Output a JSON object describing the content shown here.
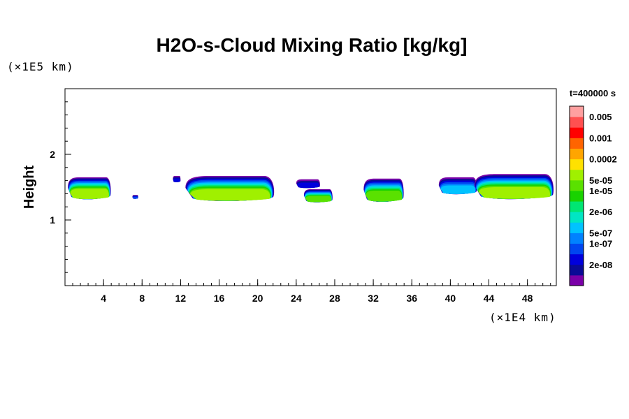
{
  "chart_data": {
    "type": "heatmap",
    "title": "H2O-s-Cloud Mixing Ratio [kg/kg]",
    "ylabel": "Height",
    "xlabel": "",
    "x_unit": "(×1E4 km)",
    "y_unit": "(×1E5 km)",
    "time_label": "t=400000 s",
    "xlim": [
      0,
      51
    ],
    "ylim": [
      0,
      3
    ],
    "x_ticks": [
      4,
      8,
      12,
      16,
      20,
      24,
      28,
      32,
      36,
      40,
      44,
      48
    ],
    "y_ticks": [
      1,
      2
    ],
    "colorbar": {
      "colors": [
        "#7a00a8",
        "#0a0a96",
        "#0000dc",
        "#0046f0",
        "#0082ff",
        "#00c3ff",
        "#00e6c3",
        "#00e673",
        "#19d200",
        "#5ae100",
        "#a0f000",
        "#ffe100",
        "#ffa500",
        "#ff6400",
        "#ff0000",
        "#ff5050",
        "#ffa0a0"
      ],
      "labels": [
        {
          "text": "2e-08",
          "after_level": 1
        },
        {
          "text": "1e-07",
          "after_level": 3
        },
        {
          "text": "5e-07",
          "after_level": 4
        },
        {
          "text": "2e-06",
          "after_level": 6
        },
        {
          "text": "1e-05",
          "after_level": 8
        },
        {
          "text": "5e-05",
          "after_level": 9
        },
        {
          "text": "0.0002",
          "after_level": 11
        },
        {
          "text": "0.001",
          "after_level": 13
        },
        {
          "text": "0.005",
          "after_level": 15
        }
      ]
    },
    "clouds": [
      {
        "xmin": 0.3,
        "xmax": 4.8,
        "ybottom": 1.3,
        "ytop": 1.65,
        "core": 1
      },
      {
        "xmin": 7.0,
        "xmax": 7.6,
        "ybottom": 1.32,
        "ytop": 1.38,
        "core": 0.4
      },
      {
        "xmin": 11.2,
        "xmax": 12.0,
        "ybottom": 1.57,
        "ytop": 1.67,
        "core": 0.2
      },
      {
        "xmin": 12.5,
        "xmax": 21.8,
        "ybottom": 1.27,
        "ytop": 1.67,
        "core": 1
      },
      {
        "xmin": 24.0,
        "xmax": 26.5,
        "ybottom": 1.48,
        "ytop": 1.62,
        "core": 0.3
      },
      {
        "xmin": 24.8,
        "xmax": 27.8,
        "ybottom": 1.26,
        "ytop": 1.47,
        "core": 0.9
      },
      {
        "xmin": 31.0,
        "xmax": 35.2,
        "ybottom": 1.26,
        "ytop": 1.63,
        "core": 0.9
      },
      {
        "xmin": 38.8,
        "xmax": 42.8,
        "ybottom": 1.38,
        "ytop": 1.65,
        "core": 0.5
      },
      {
        "xmin": 42.5,
        "xmax": 50.8,
        "ybottom": 1.3,
        "ytop": 1.7,
        "core": 1
      }
    ]
  }
}
